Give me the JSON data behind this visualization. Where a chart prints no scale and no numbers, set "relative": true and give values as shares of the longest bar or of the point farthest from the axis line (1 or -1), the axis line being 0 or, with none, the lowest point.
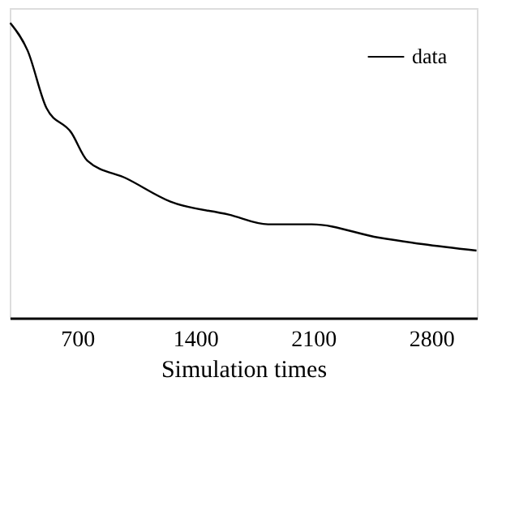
{
  "chart_data": {
    "type": "line",
    "xlabel": "Simulation times",
    "relative": true,
    "xlim": [
      300,
      3070
    ],
    "xticks": [
      700,
      1400,
      2100,
      2800
    ],
    "legend": "top right",
    "grid": false,
    "marker": "none",
    "line_style": "solid",
    "tick_labels": "x",
    "series": [
      {
        "name": "data",
        "color": "#000000",
        "x": [
          303,
          406,
          518,
          665,
          760,
          994,
          1253,
          1599,
          1832,
          2091,
          2489,
          2748,
          3068
        ],
        "values": [
          1.0,
          0.906,
          0.711,
          0.628,
          0.533,
          0.472,
          0.394,
          0.35,
          0.317,
          0.317,
          0.272,
          0.25,
          0.228
        ]
      }
    ]
  }
}
